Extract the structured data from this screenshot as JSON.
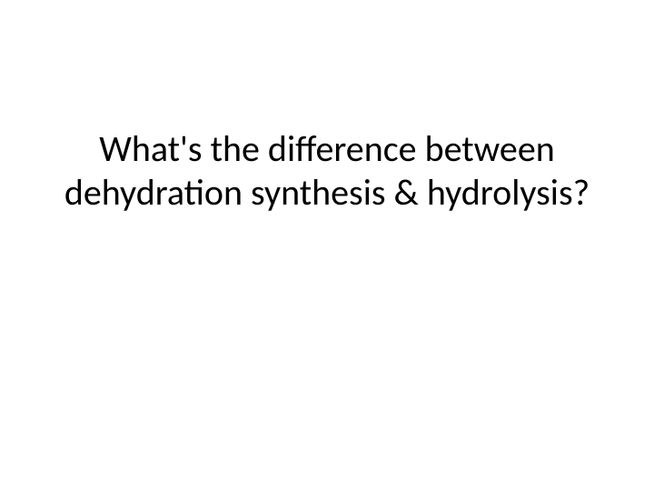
{
  "slide": {
    "title": "What's the difference between dehydration synthesis & hydrolysis?",
    "background_color": "#ffffff",
    "text_color": "#000000",
    "title_fontsize": 40,
    "title_fontweight": 400,
    "font_family": "Calibri"
  }
}
